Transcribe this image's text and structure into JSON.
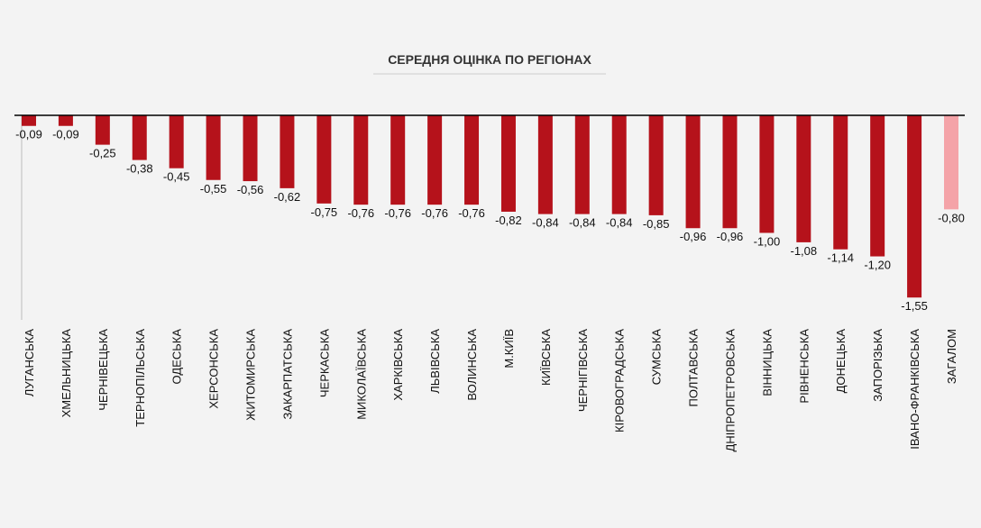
{
  "chart_data": {
    "type": "bar",
    "title": "СЕРЕДНЯ ОЦІНКА ПО РЕГІОНАХ",
    "categories": [
      "ЛУГАНСЬКА",
      "ХМЕЛЬНИЦЬКА",
      "ЧЕРНІВЕЦЬКА",
      "ТЕРНОПІЛЬСЬКА",
      "ОДЕСЬКА",
      "ХЕРСОНСЬКА",
      "ЖИТОМИРСЬКА",
      "ЗАКАРПАТСЬКА",
      "ЧЕРКАСЬКА",
      "МИКОЛАЇВСЬКА",
      "ХАРКІВСЬКА",
      "ЛЬВІВСЬКА",
      "ВОЛИНСЬКА",
      "М.КИЇВ",
      "КИЇВСЬКА",
      "ЧЕРНІГІВСЬКА",
      "КІРОВОГРАДСЬКА",
      "СУМСЬКА",
      "ПОЛТАВСЬКА",
      "ДНІПРОПЕТРОВСЬКА",
      "ВІННИЦЬКА",
      "РІВНЕНСЬКА",
      "ДОНЕЦЬКА",
      "ЗАПОРІЗЬКА",
      "ІВАНО-ФРАНКІВСЬКА",
      "ЗАГАЛОМ"
    ],
    "values": [
      -0.09,
      -0.09,
      -0.25,
      -0.38,
      -0.45,
      -0.55,
      -0.56,
      -0.62,
      -0.75,
      -0.76,
      -0.76,
      -0.76,
      -0.76,
      -0.82,
      -0.84,
      -0.84,
      -0.84,
      -0.85,
      -0.96,
      -0.96,
      -1.0,
      -1.08,
      -1.14,
      -1.2,
      -1.55,
      -0.8
    ],
    "value_labels": [
      "-0,09",
      "-0,09",
      "-0,25",
      "-0,38",
      "-0,45",
      "-0,55",
      "-0,56",
      "-0,62",
      "-0,75",
      "-0,76",
      "-0,76",
      "-0,76",
      "-0,76",
      "-0,82",
      "-0,84",
      "-0,84",
      "-0,84",
      "-0,85",
      "-0,96",
      "-0,96",
      "-1,00",
      "-1,08",
      "-1,14",
      "-1,20",
      "-1,55",
      "-0,80"
    ],
    "colors": [
      "#b5121b",
      "#b5121b",
      "#b5121b",
      "#b5121b",
      "#b5121b",
      "#b5121b",
      "#b5121b",
      "#b5121b",
      "#b5121b",
      "#b5121b",
      "#b5121b",
      "#b5121b",
      "#b5121b",
      "#b5121b",
      "#b5121b",
      "#b5121b",
      "#b5121b",
      "#b5121b",
      "#b5121b",
      "#b5121b",
      "#b5121b",
      "#b5121b",
      "#b5121b",
      "#b5121b",
      "#b5121b",
      "#f4a3a8"
    ],
    "ylim": [
      -1.74,
      0
    ]
  }
}
